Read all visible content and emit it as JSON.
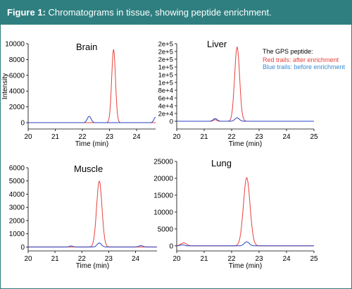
{
  "figure": {
    "label": "Figure 1:",
    "caption": "Chromatograms in tissue, showing peptide enrichment."
  },
  "colors": {
    "header_bg": "#2f7f80",
    "after_enrichment": "#e8413c",
    "before_enrichment": "#2a43c4",
    "axis": "#000000"
  },
  "legend": {
    "title": "The GPS peptide:",
    "items": [
      {
        "label": "Red trails: after enrichment",
        "color": "#e8413c"
      },
      {
        "label": "Blue trails: before enrichment",
        "color": "#3a8ad0"
      }
    ]
  },
  "chart_data": [
    {
      "type": "line",
      "title": "Brain",
      "xlabel": "Time (min)",
      "ylabel": "Intensity",
      "xlim": [
        20,
        24.7
      ],
      "ylim": [
        -800,
        10000
      ],
      "xticks": [
        "20",
        "21",
        "22",
        "23",
        "24"
      ],
      "yticks": [
        "0",
        "2000",
        "4000",
        "6000",
        "8000",
        "10000"
      ],
      "series": [
        {
          "role": "after",
          "peaks": [
            {
              "x": 23.15,
              "height": 9300,
              "width": 0.07
            }
          ]
        },
        {
          "role": "before",
          "peaks": [
            {
              "x": 22.25,
              "height": 800,
              "width": 0.07
            },
            {
              "x": 24.7,
              "height": 700,
              "width": 0.06
            }
          ]
        }
      ]
    },
    {
      "type": "line",
      "title": "Liver",
      "xlabel": "Time (min)",
      "ylabel": "",
      "xlim": [
        20,
        25
      ],
      "ylim": [
        -20000,
        200000
      ],
      "xticks": [
        "20",
        "21",
        "22",
        "23",
        "24",
        "25"
      ],
      "yticks": [
        "0",
        "2e+4",
        "4e+4",
        "6e+4",
        "8e+4",
        "1e+5",
        "1e+5",
        "1e+5",
        "2e+5",
        "2e+5",
        "2e+5"
      ],
      "series": [
        {
          "role": "after",
          "peaks": [
            {
              "x": 22.2,
              "height": 192000,
              "width": 0.09
            },
            {
              "x": 21.4,
              "height": 4000,
              "width": 0.06
            }
          ]
        },
        {
          "role": "before",
          "peaks": [
            {
              "x": 21.4,
              "height": 7000,
              "width": 0.07
            },
            {
              "x": 22.2,
              "height": 9000,
              "width": 0.08
            }
          ]
        }
      ]
    },
    {
      "type": "line",
      "title": "Muscle",
      "xlabel": "Time (min)",
      "ylabel": "",
      "xlim": [
        20,
        24.8
      ],
      "ylim": [
        -300,
        6000
      ],
      "xticks": [
        "20",
        "21",
        "22",
        "23",
        "24"
      ],
      "yticks": [
        "0",
        "1000",
        "2000",
        "3000",
        "4000",
        "5000",
        "6000"
      ],
      "series": [
        {
          "role": "after",
          "peaks": [
            {
              "x": 22.65,
              "height": 5000,
              "width": 0.1
            }
          ]
        },
        {
          "role": "before",
          "peaks": [
            {
              "x": 22.65,
              "height": 300,
              "width": 0.08
            },
            {
              "x": 21.6,
              "height": 80,
              "width": 0.06
            },
            {
              "x": 24.2,
              "height": 100,
              "width": 0.08
            }
          ]
        }
      ]
    },
    {
      "type": "line",
      "title": "Lung",
      "xlabel": "Time (min)",
      "ylabel": "",
      "xlim": [
        20,
        25
      ],
      "ylim": [
        -1500,
        25000
      ],
      "xticks": [
        "20",
        "21",
        "22",
        "23",
        "24",
        "25"
      ],
      "yticks": [
        "0",
        "5000",
        "10000",
        "15000",
        "20000",
        "25000"
      ],
      "series": [
        {
          "role": "after",
          "peaks": [
            {
              "x": 22.55,
              "height": 20200,
              "width": 0.12
            },
            {
              "x": 20.25,
              "height": 900,
              "width": 0.1
            }
          ]
        },
        {
          "role": "before",
          "peaks": [
            {
              "x": 22.55,
              "height": 1200,
              "width": 0.09
            },
            {
              "x": 20.2,
              "height": 300,
              "width": 0.08
            }
          ]
        }
      ]
    }
  ]
}
